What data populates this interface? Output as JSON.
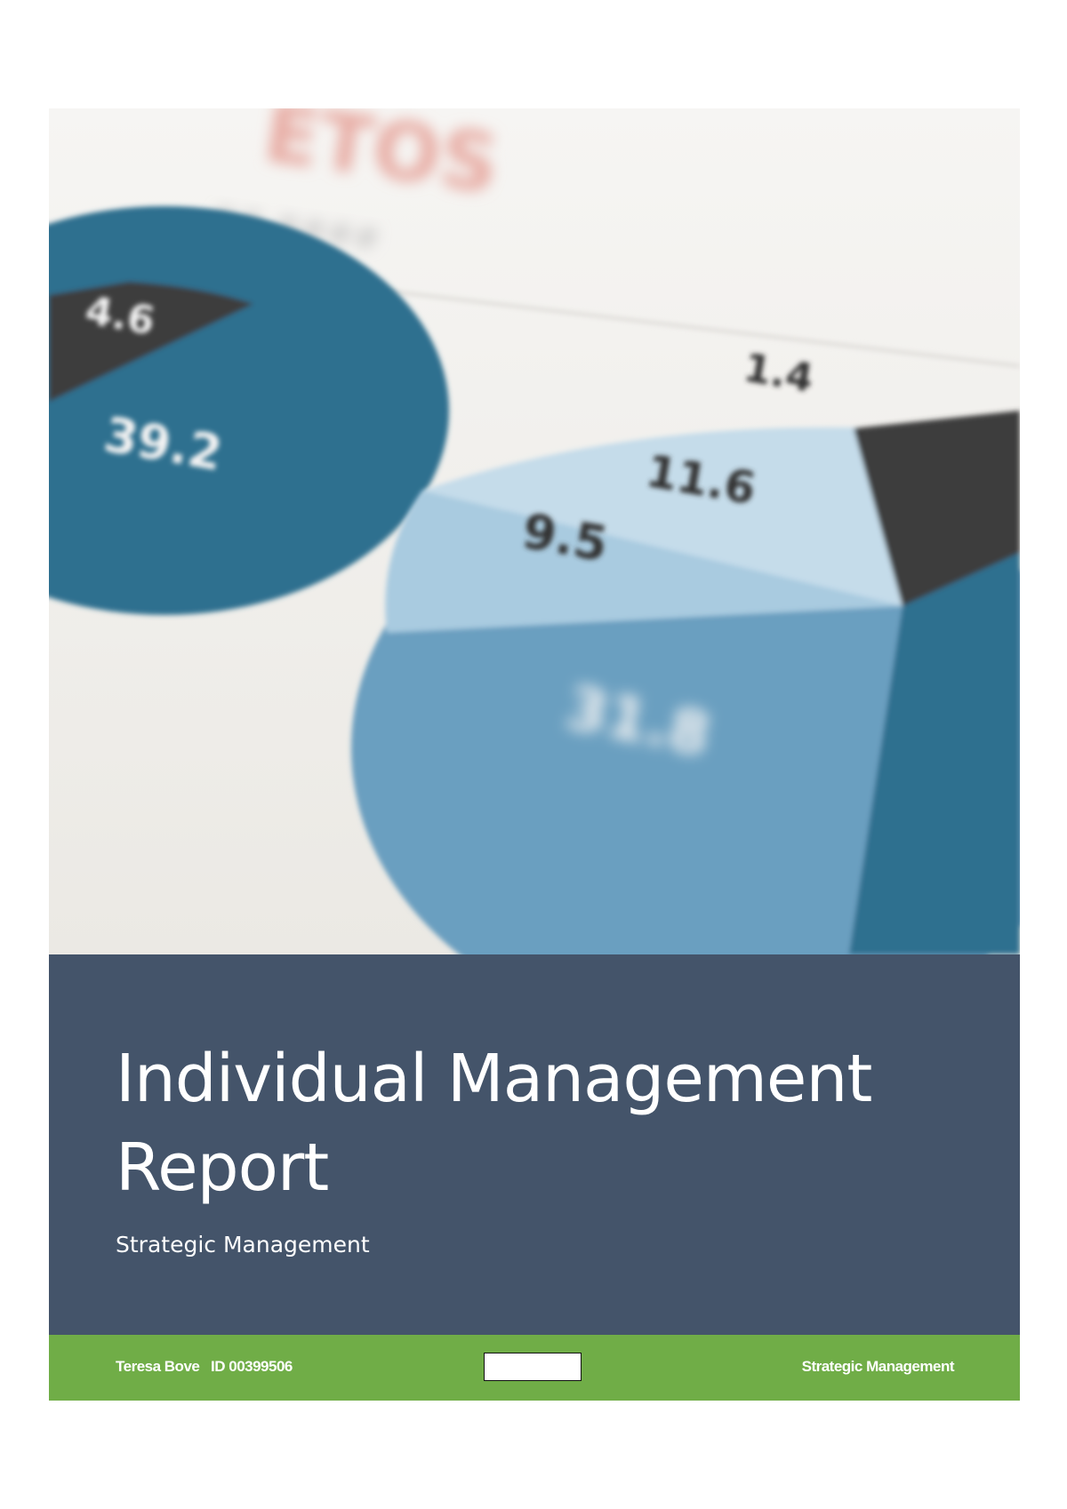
{
  "cover_photo": {
    "description_labels": [
      "4.6",
      "39.2",
      "1.4",
      "11.6",
      "9.5",
      "31.8"
    ],
    "colors": {
      "dark_blue": "#2f6f8f",
      "light_blue": "#a9cbe0",
      "mid_blue": "#6a9fc0",
      "dark_grey": "#3c3c3c"
    }
  },
  "title_block": {
    "title": "Individual Management Report",
    "subtitle": "Strategic Management",
    "background_color": "#44546a"
  },
  "footer": {
    "author": "Teresa Bove   ID 00399506",
    "course": "Strategic Management",
    "background_color": "#70ad47"
  }
}
